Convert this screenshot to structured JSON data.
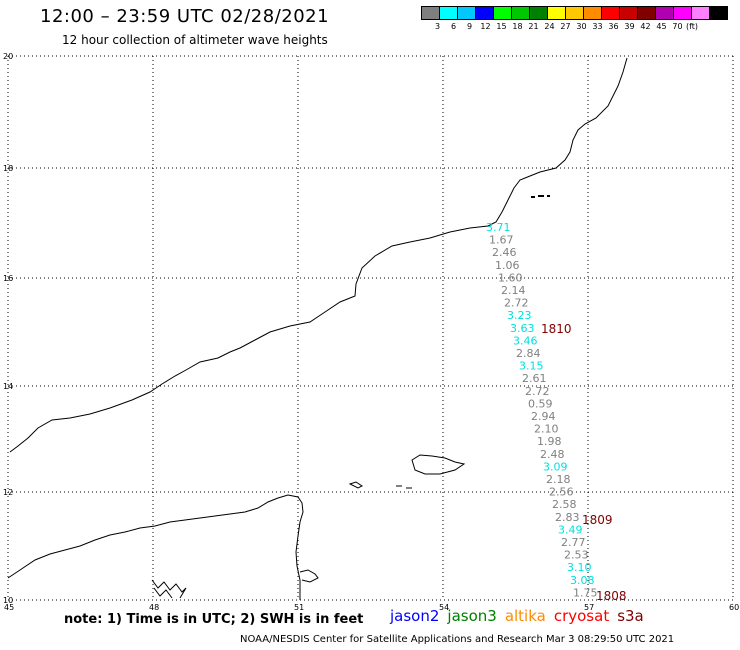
{
  "header": {
    "title": "12:00 – 23:59 UTC 02/28/2021",
    "subtitle": "12 hour collection of altimeter wave heights"
  },
  "color_scale": {
    "colors": [
      "#7f7f7f",
      "#00ffff",
      "#00c8ff",
      "#0000ff",
      "#00ff00",
      "#00c800",
      "#008000",
      "#ffff00",
      "#ffc800",
      "#ff8c00",
      "#ff0000",
      "#c80000",
      "#800000",
      "#b000b0",
      "#ff00ff",
      "#ff80ff",
      "#000000"
    ],
    "labels": [
      "3",
      "6",
      "9",
      "12",
      "15",
      "18",
      "21",
      "24",
      "27",
      "30",
      "33",
      "36",
      "39",
      "42",
      "45",
      "70"
    ],
    "unit": "(ft)"
  },
  "map": {
    "x_ticks": [
      "45",
      "48",
      "51",
      "54",
      "57",
      "60"
    ],
    "y_ticks": [
      "20",
      "18",
      "16",
      "14",
      "12",
      "10"
    ]
  },
  "track_labels": [
    {
      "text": "1810",
      "color": "#800000"
    },
    {
      "text": "1809",
      "color": "#800000"
    },
    {
      "text": "1808",
      "color": "#800000"
    }
  ],
  "wave_heights": [
    {
      "text": "3.71",
      "color": "#00e0e0"
    },
    {
      "text": "1.67",
      "color": "#808080"
    },
    {
      "text": "2.46",
      "color": "#808080"
    },
    {
      "text": "1.06",
      "color": "#808080"
    },
    {
      "text": "1.60",
      "color": "#808080"
    },
    {
      "text": "2.14",
      "color": "#808080"
    },
    {
      "text": "2.72",
      "color": "#808080"
    },
    {
      "text": "3.23",
      "color": "#00e0e0"
    },
    {
      "text": "3.63",
      "color": "#00e0e0"
    },
    {
      "text": "3.46",
      "color": "#00e0e0"
    },
    {
      "text": "2.84",
      "color": "#808080"
    },
    {
      "text": "3.15",
      "color": "#00e0e0"
    },
    {
      "text": "2.61",
      "color": "#808080"
    },
    {
      "text": "2.72",
      "color": "#808080"
    },
    {
      "text": "0.59",
      "color": "#808080"
    },
    {
      "text": "2.94",
      "color": "#808080"
    },
    {
      "text": "2.10",
      "color": "#808080"
    },
    {
      "text": "1.98",
      "color": "#808080"
    },
    {
      "text": "2.48",
      "color": "#808080"
    },
    {
      "text": "3.09",
      "color": "#00e0e0"
    },
    {
      "text": "2.18",
      "color": "#808080"
    },
    {
      "text": "2.56",
      "color": "#808080"
    },
    {
      "text": "2.58",
      "color": "#808080"
    },
    {
      "text": "2.83",
      "color": "#808080"
    },
    {
      "text": "3.49",
      "color": "#00e0e0"
    },
    {
      "text": "2.77",
      "color": "#808080"
    },
    {
      "text": "2.53",
      "color": "#808080"
    },
    {
      "text": "3.10",
      "color": "#00e0e0"
    },
    {
      "text": "3.08",
      "color": "#00e0e0"
    },
    {
      "text": "1.75",
      "color": "#808080"
    }
  ],
  "note": "note: 1) Time is in UTC; 2) SWH is in feet",
  "satellites": [
    {
      "name": "jason2",
      "color": "#0000ff"
    },
    {
      "name": "jason3",
      "color": "#008000"
    },
    {
      "name": "altika",
      "color": "#ff8c00"
    },
    {
      "name": "cryosat",
      "color": "#ff0000"
    },
    {
      "name": "s3a",
      "color": "#800000"
    }
  ],
  "footer": "NOAA/NESDIS Center for Satellite Applications and Research   Mar  3 08:29:50 UTC 2021"
}
